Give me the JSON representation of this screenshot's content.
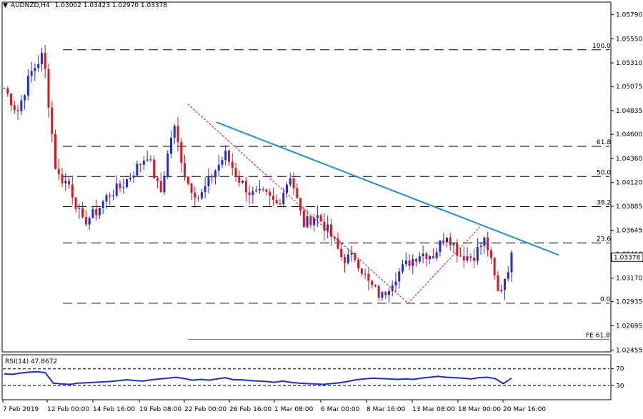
{
  "header": {
    "symbol_tf": "AUDNZD,H4",
    "ohlc": "1.03002 1.03423 1.02970 1.03378"
  },
  "price_axis": {
    "ticks": [
      "1.05790",
      "1.05550",
      "1.05310",
      "1.05075",
      "1.04835",
      "1.04600",
      "1.04360",
      "1.04120",
      "1.03885",
      "1.03645",
      "1.03410",
      "1.03170",
      "1.02935",
      "1.02695",
      "1.02455"
    ],
    "current_price": "1.03378"
  },
  "fib_levels": [
    {
      "label": "100.0",
      "price": 1.0544
    },
    {
      "label": "61.8",
      "price": 1.0448
    },
    {
      "label": "50.0",
      "price": 1.0418
    },
    {
      "label": "38.2",
      "price": 1.0388
    },
    {
      "label": "23.6",
      "price": 1.0352
    },
    {
      "label": "0.0",
      "price": 1.0292
    }
  ],
  "fe_level": {
    "label": "FE 61.8",
    "price": 1.0256
  },
  "time_axis": [
    "7 Feb 2019",
    "12 Feb 00:00",
    "14 Feb 16:00",
    "19 Feb 08:00",
    "22 Feb 00:00",
    "26 Feb 16:00",
    "1 Mar 08:00",
    "6 Mar 00:00",
    "8 Mar 16:00",
    "13 Mar 08:00",
    "18 Mar 00:00",
    "20 Mar 16:00"
  ],
  "rsi": {
    "label": "RSI(14) 47.8672",
    "levels": [
      "70",
      "30"
    ],
    "current": 47.8672
  },
  "colors": {
    "background": "#ffffff",
    "candle_up": "#1e2be6",
    "candle_down": "#e0141e",
    "trendline": "#1e8fe0",
    "fibo_lines": "#000000",
    "fe_line": "#d640d6",
    "rsi_line": "#1e2be6",
    "grid": "#000000"
  },
  "chart_data": {
    "type": "candlestick",
    "symbol": "AUDNZD",
    "timeframe": "H4",
    "ylim": [
      1.0245,
      1.059
    ],
    "anchors": [
      {
        "t": "7 Feb 2019",
        "p": 1.0506
      },
      {
        "t": "8 Feb",
        "p": 1.0482
      },
      {
        "t": "11 Feb",
        "p": 1.052
      },
      {
        "t": "12 Feb 00:00",
        "p": 1.054
      },
      {
        "t": "12 Feb",
        "p": 1.042
      },
      {
        "t": "13 Feb",
        "p": 1.041
      },
      {
        "t": "14 Feb",
        "p": 1.0372
      },
      {
        "t": "14 Feb 16:00",
        "p": 1.0382
      },
      {
        "t": "15 Feb",
        "p": 1.04
      },
      {
        "t": "18 Feb",
        "p": 1.0408
      },
      {
        "t": "19 Feb 08:00",
        "p": 1.0424
      },
      {
        "t": "20 Feb",
        "p": 1.044
      },
      {
        "t": "21 Feb",
        "p": 1.04
      },
      {
        "t": "22 Feb 00:00",
        "p": 1.047
      },
      {
        "t": "22 Feb",
        "p": 1.0414
      },
      {
        "t": "25 Feb",
        "p": 1.0396
      },
      {
        "t": "26 Feb",
        "p": 1.042
      },
      {
        "t": "26 Feb 16:00",
        "p": 1.044
      },
      {
        "t": "27 Feb",
        "p": 1.0416
      },
      {
        "t": "28 Feb",
        "p": 1.04
      },
      {
        "t": "1 Mar 08:00",
        "p": 1.04
      },
      {
        "t": "4 Mar",
        "p": 1.039
      },
      {
        "t": "5 Mar",
        "p": 1.042
      },
      {
        "t": "6 Mar 00:00",
        "p": 1.037
      },
      {
        "t": "6 Mar",
        "p": 1.038
      },
      {
        "t": "7 Mar",
        "p": 1.0362
      },
      {
        "t": "8 Mar",
        "p": 1.0336
      },
      {
        "t": "8 Mar 16:00",
        "p": 1.0338
      },
      {
        "t": "11 Mar",
        "p": 1.0312
      },
      {
        "t": "12 Mar",
        "p": 1.0298
      },
      {
        "t": "13 Mar",
        "p": 1.0318
      },
      {
        "t": "13 Mar 08:00",
        "p": 1.0332
      },
      {
        "t": "14 Mar",
        "p": 1.0342
      },
      {
        "t": "15 Mar",
        "p": 1.034
      },
      {
        "t": "18 Mar",
        "p": 1.0362
      },
      {
        "t": "18 Mar 00:00",
        "p": 1.034
      },
      {
        "t": "19 Mar",
        "p": 1.0338
      },
      {
        "t": "20 Mar",
        "p": 1.0356
      },
      {
        "t": "20 Mar 16:00",
        "p": 1.03
      },
      {
        "t": "21 Mar",
        "p": 1.03378
      }
    ],
    "rsi_values": [
      58,
      57,
      60,
      62,
      63,
      61,
      36,
      34,
      33,
      36,
      37,
      38,
      39,
      40,
      42,
      44,
      42,
      41,
      44,
      46,
      48,
      50,
      47,
      43,
      45,
      43,
      46,
      49,
      44,
      44,
      42,
      41,
      40,
      38,
      41,
      38,
      36,
      35,
      34,
      33,
      35,
      37,
      40,
      44,
      46,
      48,
      47,
      46,
      45,
      46,
      45,
      48,
      50,
      52,
      50,
      49,
      48,
      46,
      49,
      50,
      47,
      35,
      47.8672
    ],
    "rsi_ylim": [
      0,
      100
    ],
    "grid": false,
    "legend": "none"
  }
}
